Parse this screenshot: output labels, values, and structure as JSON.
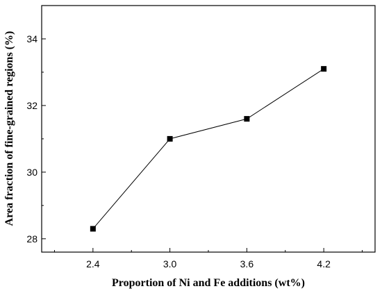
{
  "chart_data": {
    "type": "line",
    "title": "",
    "xlabel": "Proportion of Ni and Fe additions (wt%)",
    "ylabel": "Area fraction of fine-grained regions (%)",
    "x": [
      2.4,
      3.0,
      3.6,
      4.2
    ],
    "x_tick_labels": [
      "2.4",
      "3.0",
      "3.6",
      "4.2"
    ],
    "y_ticks": [
      "28",
      "30",
      "32",
      "34"
    ],
    "xlim": [
      2.0,
      4.6
    ],
    "ylim": [
      27.6,
      35.0
    ],
    "series": [
      {
        "values": [
          28.3,
          31.0,
          31.6,
          33.1
        ],
        "marker": "square",
        "color": "#000000"
      }
    ],
    "grid": false,
    "legend": "none"
  }
}
